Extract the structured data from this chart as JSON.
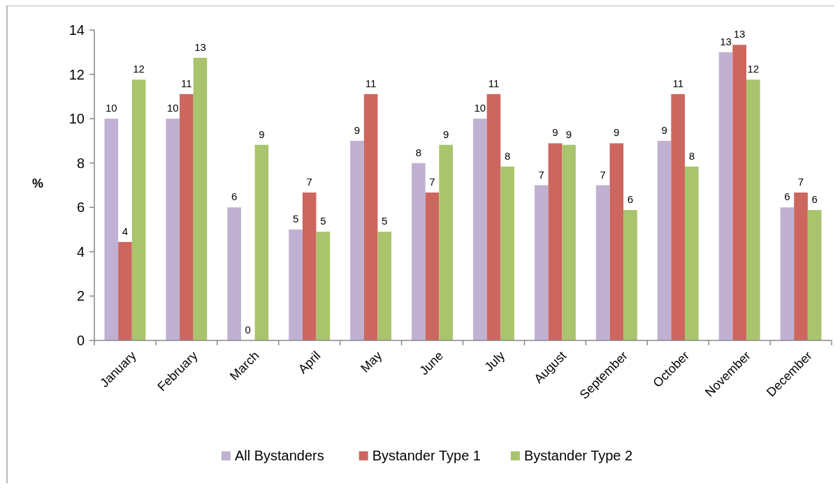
{
  "chart_data": {
    "type": "bar",
    "ylabel": "%",
    "categories": [
      "January",
      "February",
      "March",
      "April",
      "May",
      "June",
      "July",
      "August",
      "September",
      "October",
      "November",
      "December"
    ],
    "series": [
      {
        "name": "All Bystanders",
        "color": "#c0b1d3",
        "values": [
          10,
          10,
          6,
          5,
          9,
          8,
          10,
          7,
          7,
          9,
          13,
          6
        ],
        "value_labels": [
          "10",
          "10",
          "6",
          "5",
          "9",
          "8",
          "10",
          "7",
          "7",
          "9",
          "13",
          "6"
        ]
      },
      {
        "name": "Bystander Type 1",
        "color": "#cd665f",
        "values": [
          4.44,
          11.11,
          0,
          6.67,
          11.11,
          6.67,
          11.11,
          8.89,
          8.89,
          11.11,
          13.33,
          6.67
        ],
        "value_labels": [
          "4",
          "11",
          "0",
          "7",
          "11",
          "7",
          "11",
          "9",
          "9",
          "11",
          "13",
          "7"
        ]
      },
      {
        "name": "Bystander Type 2",
        "color": "#a9c46c",
        "values": [
          11.76,
          12.75,
          8.82,
          4.9,
          4.9,
          8.82,
          7.84,
          8.82,
          5.88,
          7.84,
          11.76,
          5.88
        ],
        "value_labels": [
          "12",
          "13",
          "9",
          "5",
          "5",
          "9",
          "8",
          "9",
          "6",
          "8",
          "12",
          "6"
        ]
      }
    ],
    "ylim": [
      0,
      14
    ],
    "yticks": [
      0,
      2,
      4,
      6,
      8,
      10,
      12,
      14
    ],
    "grid": false,
    "legend": "bottom"
  }
}
